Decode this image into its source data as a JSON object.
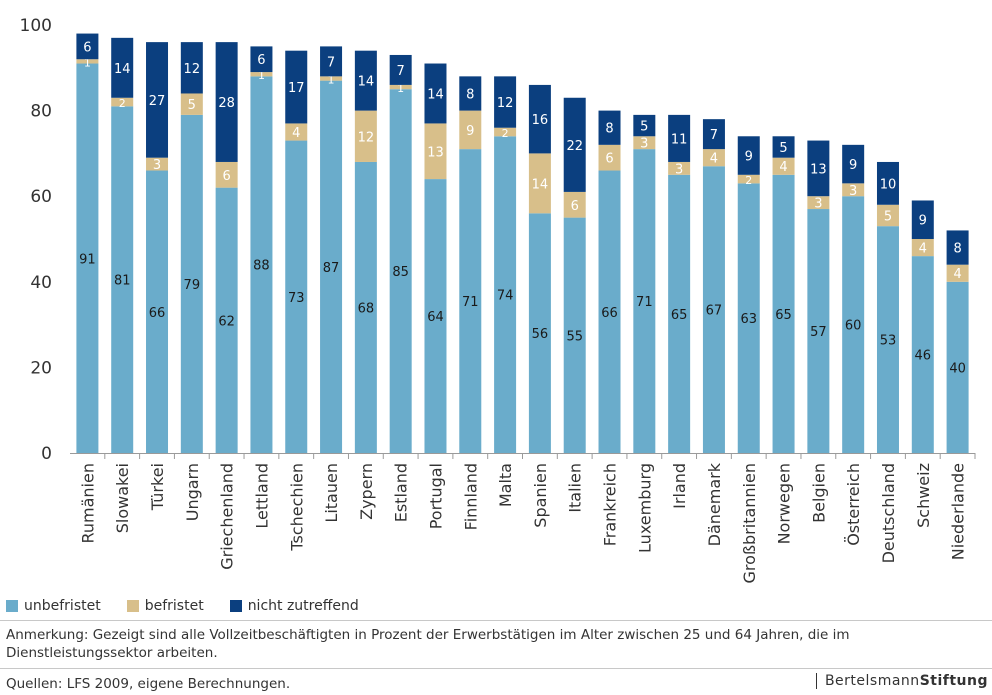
{
  "chart_data": {
    "type": "bar",
    "stacked": true,
    "categories": [
      "Rumänien",
      "Slowakei",
      "Türkei",
      "Ungarn",
      "Griechenland",
      "Lettland",
      "Tschechien",
      "Litauen",
      "Zypern",
      "Estland",
      "Portugal",
      "Finnland",
      "Malta",
      "Spanien",
      "Italien",
      "Frankreich",
      "Luxemburg",
      "Irland",
      "Dänemark",
      "Großbritannien",
      "Norwegen",
      "Belgien",
      "Österreich",
      "Deutschland",
      "Schweiz",
      "Niederlande"
    ],
    "series": [
      {
        "name": "unbefristet",
        "color": "#6aaccb",
        "label_color": "#1a1a1a",
        "values": [
          91,
          81,
          66,
          79,
          62,
          88,
          73,
          87,
          68,
          85,
          64,
          71,
          74,
          56,
          55,
          66,
          71,
          65,
          67,
          63,
          65,
          57,
          60,
          53,
          46,
          40
        ]
      },
      {
        "name": "befristet",
        "color": "#d8bf8a",
        "label_color": "#ffffff",
        "values": [
          1,
          2,
          3,
          5,
          6,
          1,
          4,
          1,
          12,
          1,
          13,
          9,
          2,
          14,
          6,
          6,
          3,
          3,
          4,
          2,
          4,
          3,
          3,
          5,
          4,
          4
        ]
      },
      {
        "name": "nicht zutreffend",
        "color": "#0b3f7f",
        "label_color": "#ffffff",
        "values": [
          6,
          14,
          27,
          12,
          28,
          6,
          17,
          7,
          14,
          7,
          14,
          8,
          12,
          16,
          22,
          8,
          5,
          11,
          7,
          9,
          5,
          13,
          9,
          10,
          9,
          8
        ]
      }
    ],
    "ylim": [
      0,
      100
    ],
    "yticks": [
      "0",
      "20",
      "40",
      "60",
      "80",
      "100"
    ],
    "legend": "bottom"
  },
  "note": "Anmerkung: Gezeigt sind alle Vollzeitbeschäftigten in Prozent der Erwerbstätigen im Alter zwischen 25 und 64 Jahren, die im Dienstleistungssektor arbeiten.",
  "source": "Quellen: LFS 2009, eigene Berechnungen.",
  "brand": {
    "part1": "Bertelsmann",
    "part2": "Stiftung"
  }
}
